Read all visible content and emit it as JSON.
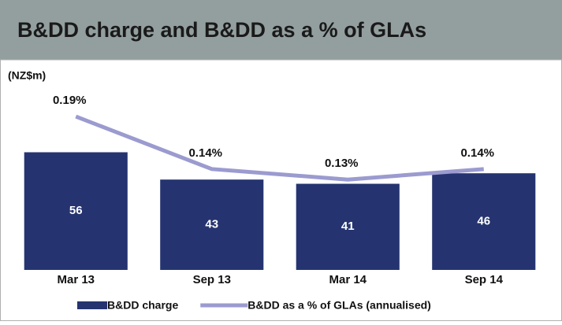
{
  "chart_data": {
    "type": "bar-line",
    "title": "B&DD charge and B&DD as a % of GLAs",
    "unit_label": "(NZ$m)",
    "categories": [
      "Mar 13",
      "Sep 13",
      "Mar 14",
      "Sep 14"
    ],
    "series": [
      {
        "name": "B&DD charge",
        "type": "bar",
        "color": "#253470",
        "values": [
          56,
          43,
          41,
          46
        ]
      },
      {
        "name": "B&DD as a % of GLAs (annualised)",
        "type": "line",
        "axis": "y2",
        "color": "#9b9bd0",
        "values": [
          0.19,
          0.14,
          0.13,
          0.14
        ],
        "value_labels": [
          "0.19%",
          "0.14%",
          "0.13%",
          "0.14%"
        ]
      }
    ],
    "ylim": [
      0,
      100
    ],
    "y2lim": [
      0.044,
      0.244
    ]
  }
}
